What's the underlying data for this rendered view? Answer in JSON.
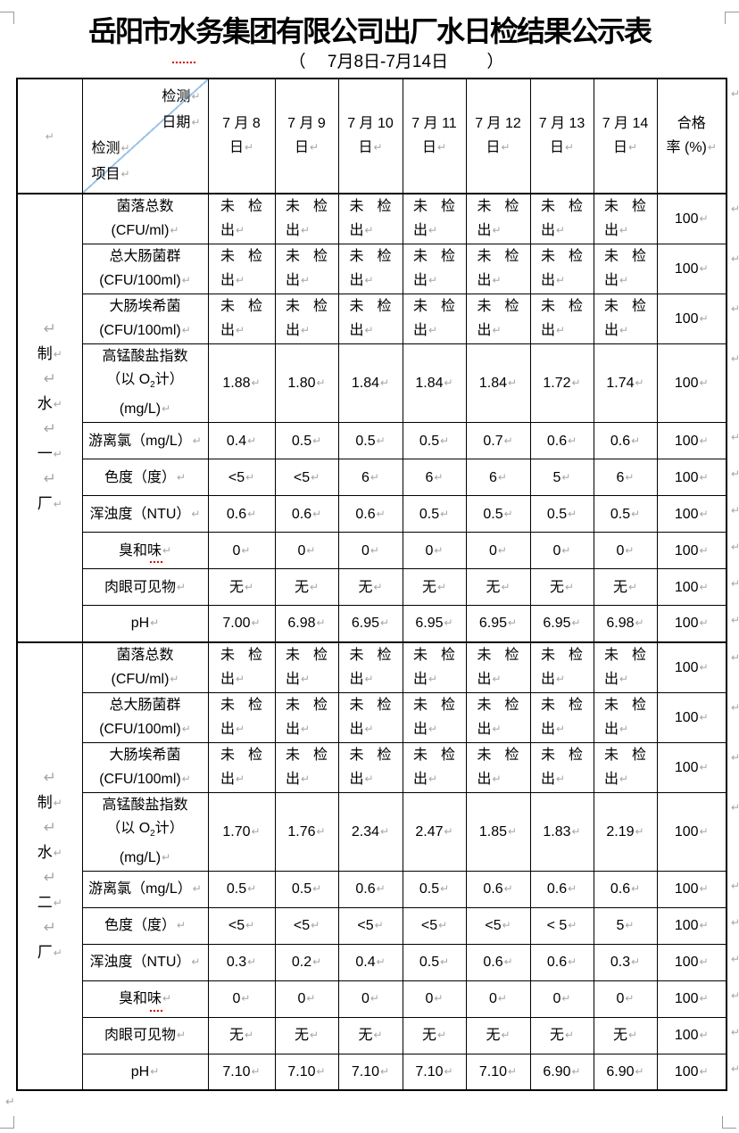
{
  "page": {
    "title": "岳阳市水务集团有限公司出厂水日检结果公示表",
    "subtitle": "（　 7月8日-7月14日 　　）",
    "pilcrow": "↵"
  },
  "header": {
    "corner_top_lines": [
      "检测",
      "日期"
    ],
    "corner_bottom_lines": [
      "检测",
      "项目"
    ],
    "dates": [
      [
        "7 月 8",
        "日"
      ],
      [
        "7 月 9",
        "日"
      ],
      [
        "7 月 10",
        "日"
      ],
      [
        "7 月 11",
        "日"
      ],
      [
        "7 月 12",
        "日"
      ],
      [
        "7 月 13",
        "日"
      ],
      [
        "7 月 14",
        "日"
      ]
    ],
    "rate_lines": [
      "合格",
      "率 (%)"
    ]
  },
  "sections": [
    {
      "plant": "制水一厂",
      "rows": [
        {
          "item_lines": [
            "菌落总数",
            "(CFU/ml)"
          ],
          "values": [
            "未检出",
            "未检出",
            "未检出",
            "未检出",
            "未检出",
            "未检出",
            "未检出"
          ],
          "rate": "100"
        },
        {
          "item_lines": [
            "总大肠菌群",
            "(CFU/100ml)"
          ],
          "values": [
            "未检出",
            "未检出",
            "未检出",
            "未检出",
            "未检出",
            "未检出",
            "未检出"
          ],
          "rate": "100"
        },
        {
          "item_lines": [
            "大肠埃希菌",
            "(CFU/100ml)"
          ],
          "values": [
            "未检出",
            "未检出",
            "未检出",
            "未检出",
            "未检出",
            "未检出",
            "未检出"
          ],
          "rate": "100"
        },
        {
          "item_lines": [
            "高锰酸盐指数",
            "（以 O₂计）",
            "(mg/L)"
          ],
          "values": [
            "1.88",
            "1.80",
            "1.84",
            "1.84",
            "1.84",
            "1.72",
            "1.74"
          ],
          "rate": "100"
        },
        {
          "item_lines": [
            "游离氯（mg/L）"
          ],
          "values": [
            "0.4",
            "0.5",
            "0.5",
            "0.5",
            "0.7",
            "0.6",
            "0.6"
          ],
          "rate": "100"
        },
        {
          "item_lines": [
            "色度（度）"
          ],
          "values": [
            "<5",
            "<5",
            "6",
            "6",
            "6",
            "5",
            "6"
          ],
          "rate": "100"
        },
        {
          "item_lines": [
            "浑浊度（NTU）"
          ],
          "values": [
            "0.6",
            "0.6",
            "0.6",
            "0.5",
            "0.5",
            "0.5",
            "0.5"
          ],
          "rate": "100"
        },
        {
          "item_lines": [
            "臭和味"
          ],
          "values": [
            "0",
            "0",
            "0",
            "0",
            "0",
            "0",
            "0"
          ],
          "rate": "100"
        },
        {
          "item_lines": [
            "肉眼可见物"
          ],
          "values": [
            "无",
            "无",
            "无",
            "无",
            "无",
            "无",
            "无"
          ],
          "rate": "100"
        },
        {
          "item_lines": [
            "pH"
          ],
          "values": [
            "7.00",
            "6.98",
            "6.95",
            "6.95",
            "6.95",
            "6.95",
            "6.98"
          ],
          "rate": "100"
        }
      ]
    },
    {
      "plant": "制水二厂",
      "rows": [
        {
          "item_lines": [
            "菌落总数",
            "(CFU/ml)"
          ],
          "values": [
            "未检出",
            "未检出",
            "未检出",
            "未检出",
            "未检出",
            "未检出",
            "未检出"
          ],
          "rate": "100"
        },
        {
          "item_lines": [
            "总大肠菌群",
            "(CFU/100ml)"
          ],
          "values": [
            "未检出",
            "未检出",
            "未检出",
            "未检出",
            "未检出",
            "未检出",
            "未检出"
          ],
          "rate": "100"
        },
        {
          "item_lines": [
            "大肠埃希菌",
            "(CFU/100ml)"
          ],
          "values": [
            "未检出",
            "未检出",
            "未检出",
            "未检出",
            "未检出",
            "未检出",
            "未检出"
          ],
          "rate": "100"
        },
        {
          "item_lines": [
            "高锰酸盐指数",
            "（以 O₂计）",
            "(mg/L)"
          ],
          "values": [
            "1.70",
            "1.76",
            "2.34",
            "2.47",
            "1.85",
            "1.83",
            "2.19"
          ],
          "rate": "100"
        },
        {
          "item_lines": [
            "游离氯（mg/L）"
          ],
          "values": [
            "0.5",
            "0.5",
            "0.6",
            "0.5",
            "0.6",
            "0.6",
            "0.6"
          ],
          "rate": "100"
        },
        {
          "item_lines": [
            "色度（度）"
          ],
          "values": [
            "<5",
            "<5",
            "<5",
            "<5",
            "<5",
            "< 5",
            "5"
          ],
          "rate": "100"
        },
        {
          "item_lines": [
            "浑浊度（NTU）"
          ],
          "values": [
            "0.3",
            "0.2",
            "0.4",
            "0.5",
            "0.6",
            "0.6",
            "0.3"
          ],
          "rate": "100"
        },
        {
          "item_lines": [
            "臭和味"
          ],
          "values": [
            "0",
            "0",
            "0",
            "0",
            "0",
            "0",
            "0"
          ],
          "rate": "100"
        },
        {
          "item_lines": [
            "肉眼可见物"
          ],
          "values": [
            "无",
            "无",
            "无",
            "无",
            "无",
            "无",
            "无"
          ],
          "rate": "100"
        },
        {
          "item_lines": [
            "pH"
          ],
          "values": [
            "7.10",
            "7.10",
            "7.10",
            "7.10",
            "7.10",
            "6.90",
            "6.90"
          ],
          "rate": "100"
        }
      ]
    }
  ]
}
